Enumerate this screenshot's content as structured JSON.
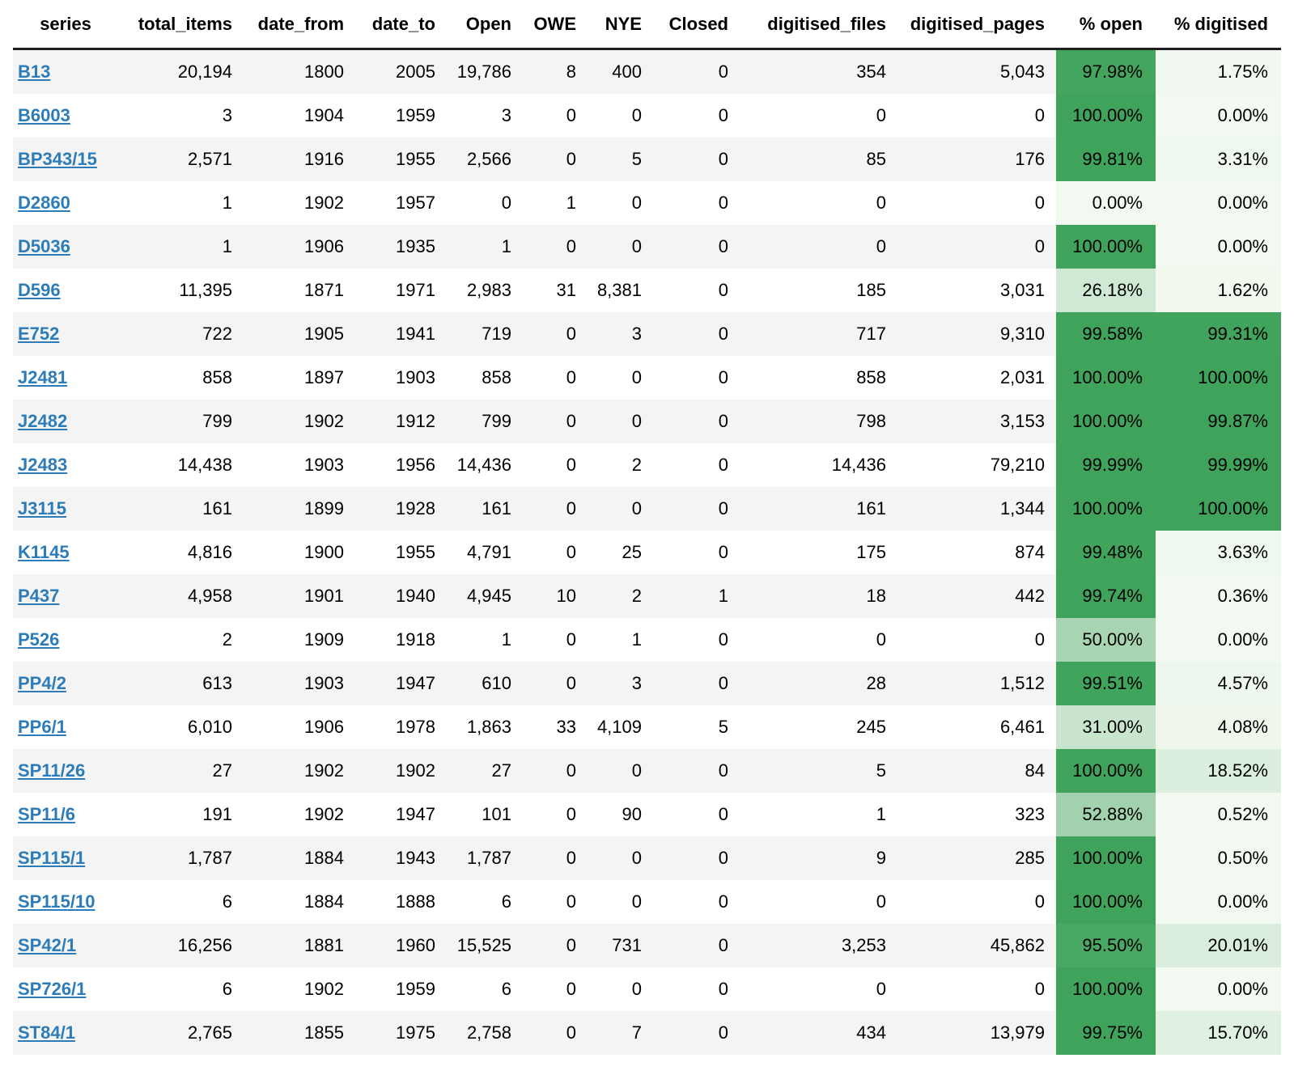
{
  "colors": {
    "link": "#2d7cba",
    "stripe": "#f4f4f4",
    "header_rule": "#1f1f1f",
    "scale_low": "#f2f9f0",
    "scale_high": "#3fa35b"
  },
  "table": {
    "columns": [
      {
        "key": "series",
        "label": "series"
      },
      {
        "key": "total_items",
        "label": "total_items"
      },
      {
        "key": "date_from",
        "label": "date_from"
      },
      {
        "key": "date_to",
        "label": "date_to"
      },
      {
        "key": "open",
        "label": "Open"
      },
      {
        "key": "owe",
        "label": "OWE"
      },
      {
        "key": "nye",
        "label": "NYE"
      },
      {
        "key": "closed",
        "label": "Closed"
      },
      {
        "key": "digitised_files",
        "label": "digitised_files"
      },
      {
        "key": "digitised_pages",
        "label": "digitised_pages"
      },
      {
        "key": "pct_open",
        "label": "% open"
      },
      {
        "key": "pct_digitised",
        "label": "% digitised"
      }
    ],
    "rows": [
      {
        "series": "B13",
        "total_items": "20,194",
        "date_from": "1800",
        "date_to": "2005",
        "open": "19,786",
        "owe": "8",
        "nye": "400",
        "closed": "0",
        "digitised_files": "354",
        "digitised_pages": "5,043",
        "pct_open": "97.98%",
        "pct_open_value": 97.98,
        "pct_digitised": "1.75%",
        "pct_digitised_value": 1.75
      },
      {
        "series": "B6003",
        "total_items": "3",
        "date_from": "1904",
        "date_to": "1959",
        "open": "3",
        "owe": "0",
        "nye": "0",
        "closed": "0",
        "digitised_files": "0",
        "digitised_pages": "0",
        "pct_open": "100.00%",
        "pct_open_value": 100,
        "pct_digitised": "0.00%",
        "pct_digitised_value": 0
      },
      {
        "series": "BP343/15",
        "total_items": "2,571",
        "date_from": "1916",
        "date_to": "1955",
        "open": "2,566",
        "owe": "0",
        "nye": "5",
        "closed": "0",
        "digitised_files": "85",
        "digitised_pages": "176",
        "pct_open": "99.81%",
        "pct_open_value": 99.81,
        "pct_digitised": "3.31%",
        "pct_digitised_value": 3.31
      },
      {
        "series": "D2860",
        "total_items": "1",
        "date_from": "1902",
        "date_to": "1957",
        "open": "0",
        "owe": "1",
        "nye": "0",
        "closed": "0",
        "digitised_files": "0",
        "digitised_pages": "0",
        "pct_open": "0.00%",
        "pct_open_value": 0,
        "pct_digitised": "0.00%",
        "pct_digitised_value": 0
      },
      {
        "series": "D5036",
        "total_items": "1",
        "date_from": "1906",
        "date_to": "1935",
        "open": "1",
        "owe": "0",
        "nye": "0",
        "closed": "0",
        "digitised_files": "0",
        "digitised_pages": "0",
        "pct_open": "100.00%",
        "pct_open_value": 100,
        "pct_digitised": "0.00%",
        "pct_digitised_value": 0
      },
      {
        "series": "D596",
        "total_items": "11,395",
        "date_from": "1871",
        "date_to": "1971",
        "open": "2,983",
        "owe": "31",
        "nye": "8,381",
        "closed": "0",
        "digitised_files": "185",
        "digitised_pages": "3,031",
        "pct_open": "26.18%",
        "pct_open_value": 26.18,
        "pct_digitised": "1.62%",
        "pct_digitised_value": 1.62
      },
      {
        "series": "E752",
        "total_items": "722",
        "date_from": "1905",
        "date_to": "1941",
        "open": "719",
        "owe": "0",
        "nye": "3",
        "closed": "0",
        "digitised_files": "717",
        "digitised_pages": "9,310",
        "pct_open": "99.58%",
        "pct_open_value": 99.58,
        "pct_digitised": "99.31%",
        "pct_digitised_value": 99.31
      },
      {
        "series": "J2481",
        "total_items": "858",
        "date_from": "1897",
        "date_to": "1903",
        "open": "858",
        "owe": "0",
        "nye": "0",
        "closed": "0",
        "digitised_files": "858",
        "digitised_pages": "2,031",
        "pct_open": "100.00%",
        "pct_open_value": 100,
        "pct_digitised": "100.00%",
        "pct_digitised_value": 100
      },
      {
        "series": "J2482",
        "total_items": "799",
        "date_from": "1902",
        "date_to": "1912",
        "open": "799",
        "owe": "0",
        "nye": "0",
        "closed": "0",
        "digitised_files": "798",
        "digitised_pages": "3,153",
        "pct_open": "100.00%",
        "pct_open_value": 100,
        "pct_digitised": "99.87%",
        "pct_digitised_value": 99.87
      },
      {
        "series": "J2483",
        "total_items": "14,438",
        "date_from": "1903",
        "date_to": "1956",
        "open": "14,436",
        "owe": "0",
        "nye": "2",
        "closed": "0",
        "digitised_files": "14,436",
        "digitised_pages": "79,210",
        "pct_open": "99.99%",
        "pct_open_value": 99.99,
        "pct_digitised": "99.99%",
        "pct_digitised_value": 99.99
      },
      {
        "series": "J3115",
        "total_items": "161",
        "date_from": "1899",
        "date_to": "1928",
        "open": "161",
        "owe": "0",
        "nye": "0",
        "closed": "0",
        "digitised_files": "161",
        "digitised_pages": "1,344",
        "pct_open": "100.00%",
        "pct_open_value": 100,
        "pct_digitised": "100.00%",
        "pct_digitised_value": 100
      },
      {
        "series": "K1145",
        "total_items": "4,816",
        "date_from": "1900",
        "date_to": "1955",
        "open": "4,791",
        "owe": "0",
        "nye": "25",
        "closed": "0",
        "digitised_files": "175",
        "digitised_pages": "874",
        "pct_open": "99.48%",
        "pct_open_value": 99.48,
        "pct_digitised": "3.63%",
        "pct_digitised_value": 3.63
      },
      {
        "series": "P437",
        "total_items": "4,958",
        "date_from": "1901",
        "date_to": "1940",
        "open": "4,945",
        "owe": "10",
        "nye": "2",
        "closed": "1",
        "digitised_files": "18",
        "digitised_pages": "442",
        "pct_open": "99.74%",
        "pct_open_value": 99.74,
        "pct_digitised": "0.36%",
        "pct_digitised_value": 0.36
      },
      {
        "series": "P526",
        "total_items": "2",
        "date_from": "1909",
        "date_to": "1918",
        "open": "1",
        "owe": "0",
        "nye": "1",
        "closed": "0",
        "digitised_files": "0",
        "digitised_pages": "0",
        "pct_open": "50.00%",
        "pct_open_value": 50,
        "pct_digitised": "0.00%",
        "pct_digitised_value": 0
      },
      {
        "series": "PP4/2",
        "total_items": "613",
        "date_from": "1903",
        "date_to": "1947",
        "open": "610",
        "owe": "0",
        "nye": "3",
        "closed": "0",
        "digitised_files": "28",
        "digitised_pages": "1,512",
        "pct_open": "99.51%",
        "pct_open_value": 99.51,
        "pct_digitised": "4.57%",
        "pct_digitised_value": 4.57
      },
      {
        "series": "PP6/1",
        "total_items": "6,010",
        "date_from": "1906",
        "date_to": "1978",
        "open": "1,863",
        "owe": "33",
        "nye": "4,109",
        "closed": "5",
        "digitised_files": "245",
        "digitised_pages": "6,461",
        "pct_open": "31.00%",
        "pct_open_value": 31,
        "pct_digitised": "4.08%",
        "pct_digitised_value": 4.08
      },
      {
        "series": "SP11/26",
        "total_items": "27",
        "date_from": "1902",
        "date_to": "1902",
        "open": "27",
        "owe": "0",
        "nye": "0",
        "closed": "0",
        "digitised_files": "5",
        "digitised_pages": "84",
        "pct_open": "100.00%",
        "pct_open_value": 100,
        "pct_digitised": "18.52%",
        "pct_digitised_value": 18.52
      },
      {
        "series": "SP11/6",
        "total_items": "191",
        "date_from": "1902",
        "date_to": "1947",
        "open": "101",
        "owe": "0",
        "nye": "90",
        "closed": "0",
        "digitised_files": "1",
        "digitised_pages": "323",
        "pct_open": "52.88%",
        "pct_open_value": 52.88,
        "pct_digitised": "0.52%",
        "pct_digitised_value": 0.52
      },
      {
        "series": "SP115/1",
        "total_items": "1,787",
        "date_from": "1884",
        "date_to": "1943",
        "open": "1,787",
        "owe": "0",
        "nye": "0",
        "closed": "0",
        "digitised_files": "9",
        "digitised_pages": "285",
        "pct_open": "100.00%",
        "pct_open_value": 100,
        "pct_digitised": "0.50%",
        "pct_digitised_value": 0.5
      },
      {
        "series": "SP115/10",
        "total_items": "6",
        "date_from": "1884",
        "date_to": "1888",
        "open": "6",
        "owe": "0",
        "nye": "0",
        "closed": "0",
        "digitised_files": "0",
        "digitised_pages": "0",
        "pct_open": "100.00%",
        "pct_open_value": 100,
        "pct_digitised": "0.00%",
        "pct_digitised_value": 0
      },
      {
        "series": "SP42/1",
        "total_items": "16,256",
        "date_from": "1881",
        "date_to": "1960",
        "open": "15,525",
        "owe": "0",
        "nye": "731",
        "closed": "0",
        "digitised_files": "3,253",
        "digitised_pages": "45,862",
        "pct_open": "95.50%",
        "pct_open_value": 95.5,
        "pct_digitised": "20.01%",
        "pct_digitised_value": 20.01
      },
      {
        "series": "SP726/1",
        "total_items": "6",
        "date_from": "1902",
        "date_to": "1959",
        "open": "6",
        "owe": "0",
        "nye": "0",
        "closed": "0",
        "digitised_files": "0",
        "digitised_pages": "0",
        "pct_open": "100.00%",
        "pct_open_value": 100,
        "pct_digitised": "0.00%",
        "pct_digitised_value": 0
      },
      {
        "series": "ST84/1",
        "total_items": "2,765",
        "date_from": "1855",
        "date_to": "1975",
        "open": "2,758",
        "owe": "0",
        "nye": "7",
        "closed": "0",
        "digitised_files": "434",
        "digitised_pages": "13,979",
        "pct_open": "99.75%",
        "pct_open_value": 99.75,
        "pct_digitised": "15.70%",
        "pct_digitised_value": 15.7
      }
    ]
  }
}
